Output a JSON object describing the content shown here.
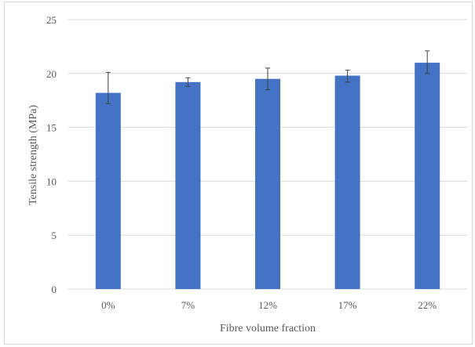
{
  "chart_data": {
    "type": "bar",
    "categories": [
      "0%",
      "7%",
      "12%",
      "17%",
      "22%"
    ],
    "values": [
      18.2,
      19.2,
      19.5,
      19.8,
      21.0
    ],
    "error": [
      [
        1.0,
        1.9
      ],
      [
        0.4,
        0.4
      ],
      [
        1.0,
        1.0
      ],
      [
        0.6,
        0.5
      ],
      [
        1.0,
        1.1
      ]
    ],
    "xlabel": "Fibre volume fraction",
    "ylabel": "Tensile strength (MPa)",
    "ylim": [
      0,
      25
    ],
    "yticks": [
      "0",
      "5",
      "10",
      "15",
      "20",
      "25"
    ],
    "grid": true,
    "bar_color": "#4472c4",
    "grid_color": "#d9d9d9",
    "error_color": "#404040"
  }
}
